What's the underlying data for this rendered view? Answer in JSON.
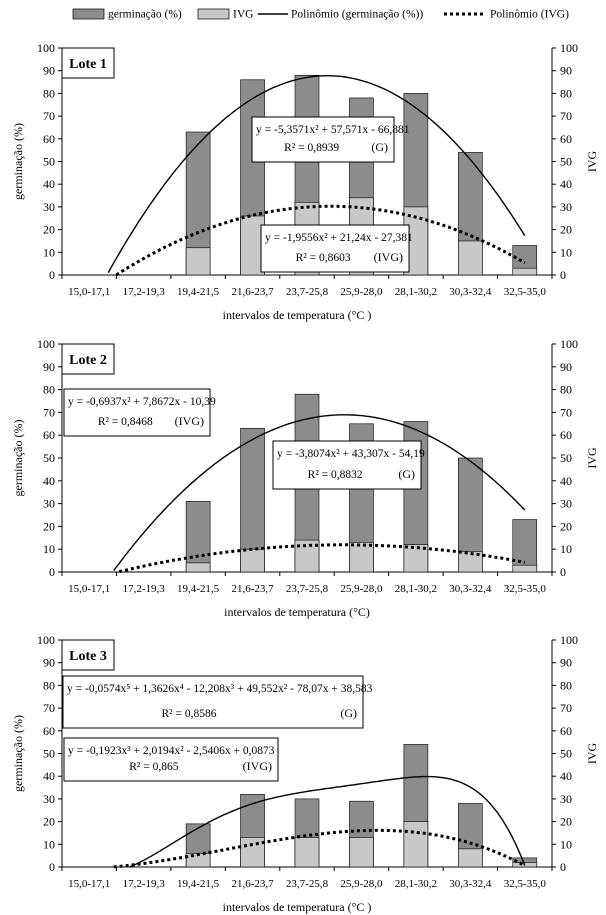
{
  "legend": {
    "germ": "germinação (%)",
    "ivg": "IVG",
    "poly_germ": "Polinômio (germinação (%))",
    "poly_ivg": "Polinômio (IVG)"
  },
  "colors": {
    "germ_bar": "#8c8c8c",
    "ivg_bar": "#c8c8c8",
    "line": "#000000"
  },
  "chart_data": [
    {
      "type": "bar",
      "title": "Lote 1",
      "xlabel": "intervalos de temperatura (°C )",
      "ylabel": "germinação (%)",
      "y2label": "IVG",
      "ylim": [
        0,
        100
      ],
      "yticks": [
        0,
        10,
        20,
        30,
        40,
        50,
        60,
        70,
        80,
        90,
        100
      ],
      "categories": [
        "15,0-17,1",
        "17,2-19,3",
        "19,4-21,5",
        "21,6-23,7",
        "23,7-25,8",
        "25,9-28,0",
        "28,1-30,2",
        "30,3-32,4",
        "32,5-35,0"
      ],
      "series": [
        {
          "name": "germinação (%)",
          "values": [
            0,
            0,
            63,
            86,
            88,
            78,
            80,
            54,
            13
          ]
        },
        {
          "name": "IVG",
          "values": [
            0,
            0,
            12,
            26,
            32,
            34,
            30,
            15,
            3
          ]
        }
      ],
      "trend_germ": {
        "a": -5.3571,
        "b": 57.571,
        "c": -66.881
      },
      "trend_ivg": {
        "a": -1.9556,
        "b": 21.24,
        "c": -27.381
      },
      "equations": [
        {
          "line1": "y = -5,3571x² + 57,571x - 66,881",
          "line2": "R² = 0,8939",
          "tag": "(G)"
        },
        {
          "line1": "y = -1,9556x² + 21,24x - 27,381",
          "line2": "R² = 0,8603",
          "tag": "(IVG)"
        }
      ]
    },
    {
      "type": "bar",
      "title": "Lote 2",
      "xlabel": "intervalos de temperatura (°C)",
      "ylabel": "germinação (%)",
      "y2label": "IVG",
      "ylim": [
        0,
        100
      ],
      "yticks": [
        0,
        10,
        20,
        30,
        40,
        50,
        60,
        70,
        80,
        90,
        100
      ],
      "categories": [
        "15,0-17,1",
        "17,2-19,3",
        "19,4-21,5",
        "21,6-23,7",
        "23,7-25,8",
        "25,9-28,0",
        "28,1-30,2",
        "30,3-32,4",
        "32,5-35,0"
      ],
      "series": [
        {
          "name": "germinação (%)",
          "values": [
            0,
            0,
            31,
            63,
            78,
            65,
            66,
            50,
            23
          ]
        },
        {
          "name": "IVG",
          "values": [
            0,
            0,
            4,
            10,
            14,
            13,
            12,
            9,
            3
          ]
        }
      ],
      "trend_germ": {
        "a": -3.8074,
        "b": 43.307,
        "c": -54.19
      },
      "trend_ivg": {
        "a": -0.6937,
        "b": 7.8672,
        "c": -10.39
      },
      "equations": [
        {
          "line1": "y = -0,6937x² + 7,8672x - 10,39",
          "line2": "R² = 0,8468",
          "tag": "(IVG)"
        },
        {
          "line1": "y = -3,8074x² + 43,307x - 54,19",
          "line2": "R² = 0,8832",
          "tag": "(G)"
        }
      ]
    },
    {
      "type": "bar",
      "title": "Lote 3",
      "xlabel": "intervalos de temperatura (°C )",
      "ylabel": "germinação (%)",
      "y2label": "IVG",
      "ylim": [
        0,
        100
      ],
      "yticks": [
        0,
        10,
        20,
        30,
        40,
        50,
        60,
        70,
        80,
        90,
        100
      ],
      "categories": [
        "15,0-17,1",
        "17,2-19,3",
        "19,4-21,5",
        "21,6-23,7",
        "23,7-25,8",
        "25,9-28,0",
        "28,1-30,2",
        "30,3-32,4",
        "32,5-35,0"
      ],
      "series": [
        {
          "name": "germinação (%)",
          "values": [
            0,
            0,
            19,
            32,
            30,
            29,
            54,
            28,
            4
          ]
        },
        {
          "name": "IVG",
          "values": [
            0,
            0,
            6,
            13,
            13,
            13,
            20,
            8,
            2
          ]
        }
      ],
      "trend_germ": {
        "coef": [
          -0.0574,
          1.3626,
          -12.208,
          49.552,
          -78.07,
          38.583
        ]
      },
      "trend_ivg": {
        "coef": [
          -0.1923,
          2.0194,
          -2.5406,
          0.0873
        ]
      },
      "equations": [
        {
          "line1": "y = -0,0574x⁵ + 1,3626x⁴ - 12,208x³ + 49,552x² - 78,07x + 38,583",
          "line2": "R² = 0,8586",
          "tag": "(G)"
        },
        {
          "line1": "y = -0,1923x³ + 2,0194x² - 2,5406x + 0,0873",
          "line2": "R² = 0,865",
          "tag": "(IVG)"
        }
      ]
    }
  ]
}
